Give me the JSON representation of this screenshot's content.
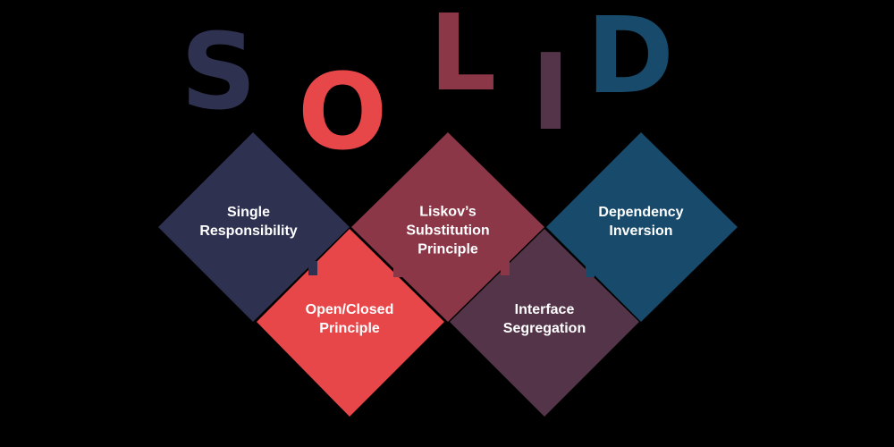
{
  "colors": {
    "background": "#000000",
    "navy": "#2e3150",
    "coral": "#e8474a",
    "wine": "#8b3748",
    "plum": "#533449",
    "teal": "#184a6b"
  },
  "letters": {
    "s": "S",
    "o": "O",
    "l": "L",
    "i": "I",
    "d": "D"
  },
  "principles": {
    "s": {
      "line1": "Single",
      "line2": "Responsibility"
    },
    "o": {
      "line1": "Open/Closed",
      "line2": "Principle"
    },
    "l": {
      "line1": "Liskov’s",
      "line2": "Substitution",
      "line3": "Principle"
    },
    "i": {
      "line1": "Interface",
      "line2": "Segregation"
    },
    "d": {
      "line1": "Dependency",
      "line2": "Inversion"
    }
  }
}
